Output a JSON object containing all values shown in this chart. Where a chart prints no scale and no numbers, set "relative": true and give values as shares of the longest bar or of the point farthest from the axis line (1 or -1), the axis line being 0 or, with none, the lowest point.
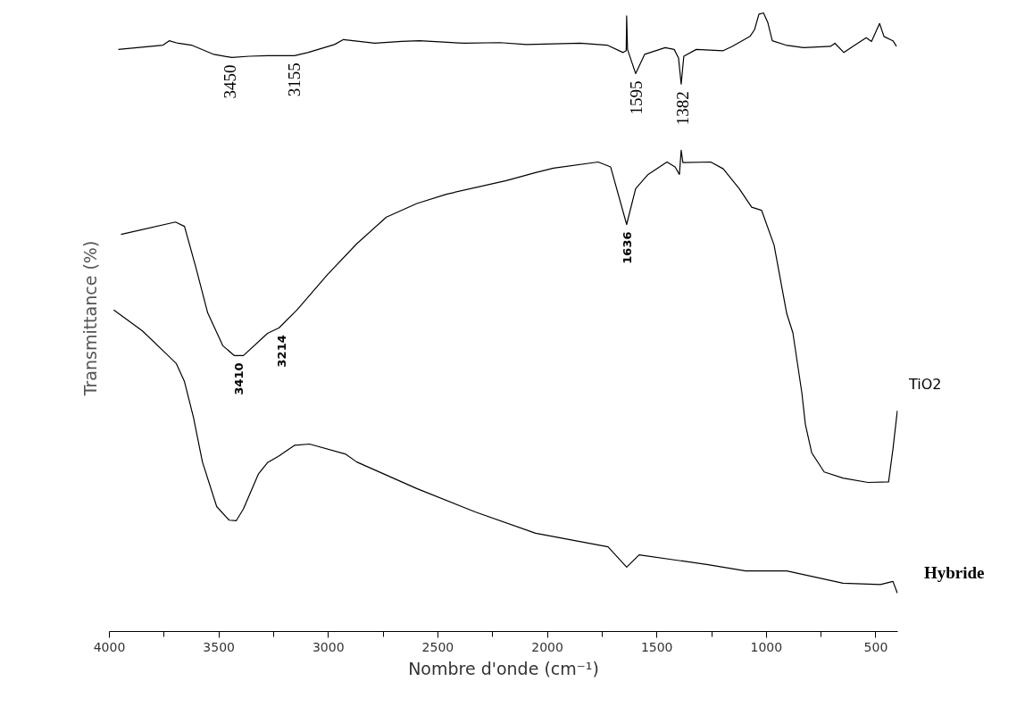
{
  "chart_data": {
    "type": "line",
    "relative": true,
    "xlabel": "Nombre d'onde (cm⁻¹)",
    "ylabel": "Transmittance (%)",
    "xlim": [
      4000,
      400
    ],
    "xticks": [
      4000,
      3500,
      3000,
      2500,
      2000,
      1500,
      1000,
      500
    ],
    "grid": false,
    "marker": "none",
    "line_style": "solid",
    "tick_labels": "x",
    "series": [
      {
        "color": "#000000",
        "x": [
          3959,
          3755,
          3727,
          3686,
          3625,
          3523,
          3441,
          3360,
          3278,
          3155,
          3094,
          2972,
          2931,
          2788,
          2666,
          2584,
          2380,
          2217,
          2095,
          1850,
          1727,
          1654,
          1640,
          1638,
          1634,
          1597,
          1556,
          1462,
          1421,
          1401,
          1389,
          1377,
          1320,
          1197,
          1156,
          1075,
          1054,
          1034,
          1013,
          993,
          973,
          911,
          830,
          707,
          687,
          646,
          605,
          544,
          520,
          483,
          463,
          422,
          406
        ],
        "values": [
          0.941,
          0.948,
          0.955,
          0.951,
          0.948,
          0.933,
          0.928,
          0.93,
          0.931,
          0.931,
          0.936,
          0.949,
          0.957,
          0.951,
          0.954,
          0.955,
          0.951,
          0.952,
          0.949,
          0.951,
          0.948,
          0.936,
          0.939,
          0.995,
          0.941,
          0.902,
          0.933,
          0.944,
          0.941,
          0.927,
          0.885,
          0.93,
          0.941,
          0.939,
          0.946,
          0.962,
          0.973,
          0.998,
          1.0,
          0.984,
          0.955,
          0.948,
          0.944,
          0.946,
          0.951,
          0.936,
          0.946,
          0.96,
          0.954,
          0.983,
          0.962,
          0.955,
          0.946
        ]
      },
      {
        "name": "TiO2",
        "color": "#000000",
        "x": [
          3947,
          3698,
          3657,
          3604,
          3551,
          3482,
          3429,
          3388,
          3278,
          3225,
          3143,
          3004,
          2870,
          2735,
          2596,
          2461,
          2188,
          2054,
          1972,
          1768,
          1711,
          1638,
          1597,
          1540,
          1454,
          1417,
          1397,
          1389,
          1381,
          1254,
          1197,
          1124,
          1067,
          1022,
          965,
          907,
          879,
          838,
          822,
          793,
          736,
          650,
          536,
          442,
          422,
          402
        ],
        "values": [
          0.642,
          0.662,
          0.655,
          0.587,
          0.515,
          0.462,
          0.446,
          0.446,
          0.482,
          0.491,
          0.52,
          0.577,
          0.627,
          0.67,
          0.692,
          0.707,
          0.729,
          0.742,
          0.749,
          0.759,
          0.751,
          0.658,
          0.716,
          0.739,
          0.759,
          0.751,
          0.739,
          0.778,
          0.758,
          0.759,
          0.748,
          0.716,
          0.686,
          0.681,
          0.625,
          0.514,
          0.483,
          0.386,
          0.335,
          0.289,
          0.258,
          0.248,
          0.241,
          0.242,
          0.295,
          0.357
        ]
      },
      {
        "name": "Hybride",
        "color": "#000000",
        "x": [
          3980,
          3849,
          3755,
          3694,
          3657,
          3616,
          3575,
          3510,
          3453,
          3421,
          3388,
          3319,
          3278,
          3225,
          3155,
          3086,
          2923,
          2870,
          2596,
          2327,
          2054,
          1723,
          1638,
          1581,
          1266,
          1095,
          907,
          650,
          479,
          422,
          402
        ],
        "values": [
          0.52,
          0.486,
          0.454,
          0.433,
          0.404,
          0.346,
          0.274,
          0.202,
          0.18,
          0.179,
          0.198,
          0.255,
          0.273,
          0.284,
          0.301,
          0.303,
          0.287,
          0.274,
          0.231,
          0.193,
          0.159,
          0.137,
          0.104,
          0.124,
          0.108,
          0.098,
          0.098,
          0.078,
          0.076,
          0.081,
          0.062
        ]
      }
    ],
    "annotations": [
      {
        "text": "3450",
        "x": 3450,
        "y": 0.928
      },
      {
        "text": "3155",
        "x": 3155,
        "y": 0.931
      },
      {
        "text": "1595",
        "x": 1595,
        "y": 0.902
      },
      {
        "text": "1382",
        "x": 1382,
        "y": 0.885
      },
      {
        "text": "3410",
        "x": 3410,
        "y": 0.446
      },
      {
        "text": "3214",
        "x": 3214,
        "y": 0.491
      },
      {
        "text": "1636",
        "x": 1636,
        "y": 0.658
      }
    ]
  }
}
